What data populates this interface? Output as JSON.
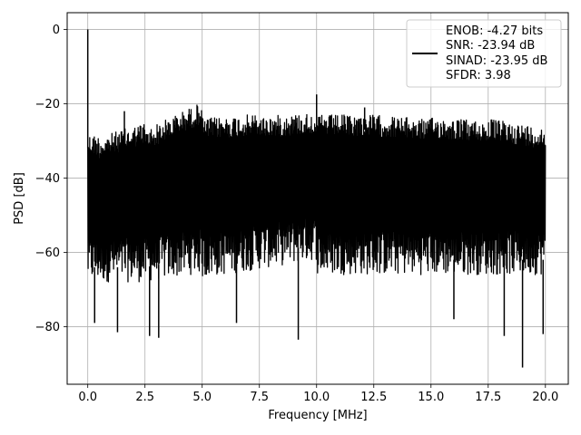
{
  "chart_data": {
    "type": "line",
    "xlabel": "Frequency [MHz]",
    "ylabel": "PSD [dB]",
    "xlim": [
      -0.9,
      21.0
    ],
    "ylim": [
      -95.5,
      4.5
    ],
    "xticks": [
      0.0,
      2.5,
      5.0,
      7.5,
      10.0,
      12.5,
      15.0,
      17.5,
      20.0
    ],
    "xtick_labels": [
      "0.0",
      "2.5",
      "5.0",
      "7.5",
      "10.0",
      "12.5",
      "15.0",
      "17.5",
      "20.0"
    ],
    "yticks": [
      0,
      -20,
      -40,
      -60,
      -80
    ],
    "ytick_labels": [
      "0",
      "−20",
      "−40",
      "−60",
      "−80"
    ],
    "grid": true,
    "legend_position": "top-right",
    "series": [
      {
        "name": "ENOB: -4.27 bits\nSNR: -23.94 dB\nSINAD: -23.95 dB\nSFDR: 3.98",
        "color": "#000000",
        "x_range": [
          0.0,
          20.0
        ],
        "upper_envelope": [
          [
            0.0,
            -28
          ],
          [
            0.5,
            -29
          ],
          [
            2.5,
            -27
          ],
          [
            5.0,
            -24
          ],
          [
            7.5,
            -23.5
          ],
          [
            10.0,
            -23
          ],
          [
            12.5,
            -23
          ],
          [
            15.0,
            -23.5
          ],
          [
            17.5,
            -24
          ],
          [
            20.0,
            -25
          ]
        ],
        "lower_envelope": [
          [
            0.0,
            -68
          ],
          [
            2.5,
            -68
          ],
          [
            5.0,
            -67
          ],
          [
            10.0,
            -66
          ],
          [
            15.0,
            -66
          ],
          [
            20.0,
            -66
          ]
        ],
        "spikes": [
          [
            0.0,
            0.0
          ],
          [
            1.6,
            -22
          ],
          [
            10.0,
            -17.5
          ],
          [
            12.1,
            -21
          ]
        ],
        "dips": [
          [
            0.3,
            -79
          ],
          [
            1.3,
            -81.5
          ],
          [
            2.7,
            -82.5
          ],
          [
            3.1,
            -83
          ],
          [
            6.5,
            -79
          ],
          [
            9.2,
            -83.5
          ],
          [
            16.0,
            -78
          ],
          [
            18.2,
            -82.5
          ],
          [
            19.0,
            -91
          ],
          [
            19.9,
            -82
          ]
        ]
      }
    ]
  },
  "legend": {
    "lines": [
      "ENOB: -4.27 bits",
      "SNR: -23.94 dB",
      "SINAD: -23.95 dB",
      "SFDR: 3.98"
    ]
  }
}
